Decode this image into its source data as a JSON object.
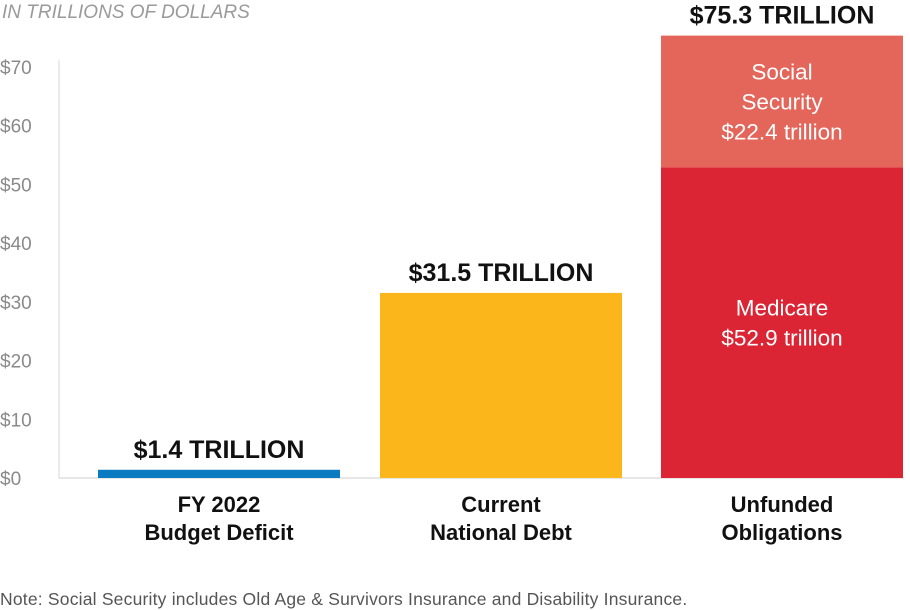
{
  "chart_data": {
    "type": "bar",
    "subtitle": "IN TRILLIONS OF DOLLARS",
    "y_ticks": [
      "$0",
      "$10",
      "$20",
      "$30",
      "$40",
      "$50",
      "$60",
      "$70"
    ],
    "y_tick_values": [
      0,
      10,
      20,
      30,
      40,
      50,
      60,
      70
    ],
    "ylim": [
      0,
      77
    ],
    "grid": false,
    "bars": [
      {
        "category_lines": [
          "FY 2022",
          "Budget Deficit"
        ],
        "total_label": "$1.4 TRILLION",
        "color": "#0a7bc1",
        "segments": [
          {
            "value": 1.4,
            "color": "#0a7bc1",
            "label_lines": []
          }
        ]
      },
      {
        "category_lines": [
          "Current",
          "National Debt"
        ],
        "total_label": "$31.5 TRILLION",
        "color": "#fbb61c",
        "segments": [
          {
            "value": 31.5,
            "color": "#fbb61c",
            "label_lines": []
          }
        ]
      },
      {
        "category_lines": [
          "Unfunded",
          "Obligations"
        ],
        "total_label": "$75.3 TRILLION",
        "color": "#dc2534",
        "segments": [
          {
            "value": 52.9,
            "color": "#dc2534",
            "label_lines": [
              "Medicare",
              "$52.9 trillion"
            ]
          },
          {
            "value": 22.4,
            "color": "#e4655a",
            "label_lines": [
              "Social",
              "Security",
              "$22.4 trillion"
            ]
          }
        ]
      }
    ]
  },
  "note": "Note: Social Security includes Old Age & Survivors Insurance and Disability Insurance."
}
